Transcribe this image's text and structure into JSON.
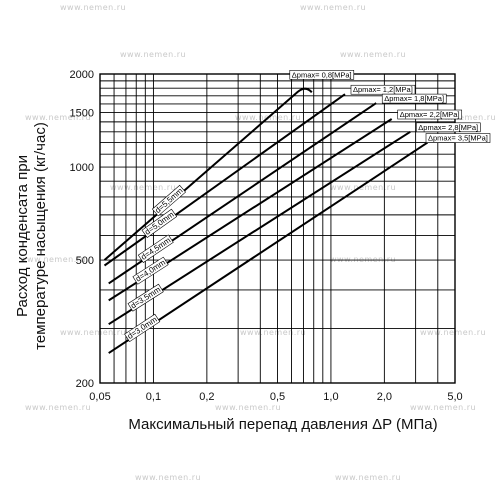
{
  "watermark": "www.nemen.ru",
  "chart_data": {
    "type": "line",
    "xscale": "log",
    "yscale": "log",
    "xlim": [
      0.05,
      5.0
    ],
    "ylim": [
      200,
      2000
    ],
    "xlabel": "Максимальный перепад давления ΔP (МПа)",
    "ylabel_lines": [
      "Расход конденсата при",
      "температуре насыщения (кг/час)"
    ],
    "x_ticks": [
      {
        "value": 0.05,
        "label": "0,05"
      },
      {
        "value": 0.1,
        "label": "0,1"
      },
      {
        "value": 0.2,
        "label": "0,2"
      },
      {
        "value": 0.5,
        "label": "0,5"
      },
      {
        "value": 1.0,
        "label": "1,0"
      },
      {
        "value": 2.0,
        "label": "2,0"
      },
      {
        "value": 5.0,
        "label": "5,0"
      }
    ],
    "y_ticks": [
      {
        "value": 200,
        "label": "200"
      },
      {
        "value": 500,
        "label": "500"
      },
      {
        "value": 1000,
        "label": "1000"
      },
      {
        "value": 1500,
        "label": "1500"
      },
      {
        "value": 2000,
        "label": "2000"
      }
    ],
    "series": [
      {
        "name": "d=5,5mm",
        "max_dp": "Δpmax= 0,8[MPa]",
        "x": [
          0.053,
          0.65,
          0.72,
          0.78
        ],
        "y": [
          500,
          1750,
          1760,
          1745
        ]
      },
      {
        "name": "d=5,0mm",
        "max_dp": "Δpmax= 1,2[MPa]",
        "x": [
          0.053,
          1.2
        ],
        "y": [
          480,
          1720
        ]
      },
      {
        "name": "d=4,5mm",
        "max_dp": "Δpmax= 1,8[MPa]",
        "x": [
          0.056,
          1.8
        ],
        "y": [
          420,
          1610
        ]
      },
      {
        "name": "d=4,0mm",
        "max_dp": "Δpmax= 2,2[MPa]",
        "x": [
          0.056,
          2.2
        ],
        "y": [
          370,
          1430
        ]
      },
      {
        "name": "d=3,5mm",
        "max_dp": "Δpmax= 2,8[MPa]",
        "x": [
          0.056,
          2.8
        ],
        "y": [
          310,
          1300
        ]
      },
      {
        "name": "d=3,0mm",
        "max_dp": "Δpmax= 3,5[MPa]",
        "x": [
          0.056,
          3.5
        ],
        "y": [
          250,
          1200
        ]
      }
    ]
  }
}
